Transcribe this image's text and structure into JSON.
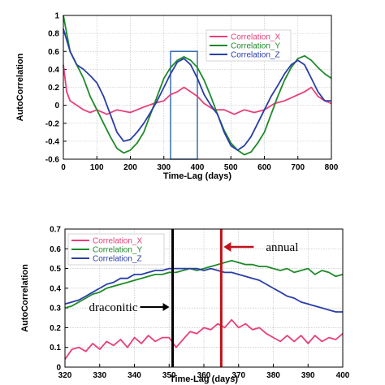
{
  "chart_data": [
    {
      "type": "line",
      "xlabel": "Time-Lag (days)",
      "ylabel": "AutoCorrelation",
      "xlim": [
        0,
        800
      ],
      "ylim": [
        -0.6,
        1
      ],
      "xticks": [
        "0",
        "100",
        "200",
        "300",
        "400",
        "500",
        "600",
        "700",
        "800"
      ],
      "yticks": [
        "-0.6",
        "-0.4",
        "-0.2",
        "0",
        "0.2",
        "0.4",
        "0.6",
        "0.8",
        "1"
      ],
      "grid": true,
      "legend_position": "top-right",
      "highlight_box": {
        "x": [
          320,
          400
        ],
        "y": [
          -0.6,
          0.6
        ],
        "color": "#3a6fb0"
      },
      "series": [
        {
          "name": "Correlation_X",
          "color": "#e8407a",
          "x": [
            0,
            10,
            20,
            40,
            60,
            80,
            100,
            130,
            160,
            200,
            240,
            270,
            300,
            320,
            340,
            360,
            380,
            400,
            420,
            450,
            480,
            510,
            540,
            570,
            600,
            630,
            660,
            690,
            720,
            740,
            760,
            780,
            800
          ],
          "y": [
            0.45,
            0.15,
            0.05,
            0.0,
            -0.05,
            -0.08,
            -0.05,
            -0.1,
            -0.05,
            -0.08,
            -0.02,
            0.02,
            0.05,
            0.12,
            0.15,
            0.2,
            0.15,
            0.1,
            0.02,
            -0.05,
            -0.05,
            -0.1,
            -0.05,
            -0.08,
            -0.05,
            0.02,
            0.05,
            0.1,
            0.15,
            0.2,
            0.1,
            0.05,
            0.02
          ]
        },
        {
          "name": "Correlation_Y",
          "color": "#1f8a2a",
          "x": [
            0,
            20,
            40,
            60,
            80,
            100,
            120,
            140,
            160,
            180,
            200,
            220,
            240,
            260,
            280,
            300,
            320,
            340,
            360,
            380,
            400,
            420,
            440,
            460,
            480,
            500,
            520,
            540,
            560,
            580,
            600,
            620,
            640,
            660,
            680,
            700,
            720,
            740,
            760,
            780,
            800
          ],
          "y": [
            1.0,
            0.6,
            0.45,
            0.3,
            0.1,
            -0.05,
            -0.2,
            -0.35,
            -0.48,
            -0.53,
            -0.5,
            -0.42,
            -0.3,
            -0.1,
            0.1,
            0.3,
            0.42,
            0.5,
            0.54,
            0.5,
            0.42,
            0.28,
            0.1,
            -0.1,
            -0.28,
            -0.42,
            -0.5,
            -0.55,
            -0.52,
            -0.42,
            -0.3,
            -0.1,
            0.1,
            0.28,
            0.42,
            0.52,
            0.55,
            0.5,
            0.42,
            0.35,
            0.3
          ]
        },
        {
          "name": "Correlation_Z",
          "color": "#2a3ea8",
          "x": [
            0,
            20,
            40,
            60,
            80,
            100,
            120,
            140,
            160,
            180,
            200,
            220,
            240,
            260,
            280,
            300,
            320,
            340,
            360,
            380,
            400,
            420,
            440,
            460,
            480,
            500,
            520,
            540,
            560,
            580,
            600,
            620,
            640,
            660,
            680,
            700,
            720,
            740,
            760,
            780,
            800
          ],
          "y": [
            0.85,
            0.6,
            0.45,
            0.4,
            0.33,
            0.25,
            0.1,
            -0.1,
            -0.3,
            -0.4,
            -0.38,
            -0.3,
            -0.2,
            -0.08,
            0.05,
            0.2,
            0.35,
            0.48,
            0.52,
            0.45,
            0.3,
            0.12,
            0.0,
            -0.1,
            -0.3,
            -0.45,
            -0.5,
            -0.45,
            -0.35,
            -0.2,
            -0.05,
            0.1,
            0.22,
            0.35,
            0.45,
            0.5,
            0.45,
            0.3,
            0.15,
            0.05,
            0.05
          ]
        }
      ]
    },
    {
      "type": "line",
      "xlabel": "Time-Lag (days)",
      "ylabel": "AutoCorrelation",
      "xlim": [
        320,
        400
      ],
      "ylim": [
        0,
        0.7
      ],
      "xticks": [
        "320",
        "330",
        "340",
        "350",
        "360",
        "370",
        "380",
        "390",
        "400"
      ],
      "yticks": [
        "0",
        "0.1",
        "0.2",
        "0.3",
        "0.4",
        "0.5",
        "0.6",
        "0.7"
      ],
      "grid": true,
      "legend_position": "top-left",
      "vlines": [
        {
          "x": 351,
          "color": "#000000",
          "label": "draconitic"
        },
        {
          "x": 365,
          "color": "#c0121a",
          "label": "annual"
        }
      ],
      "series": [
        {
          "name": "Correlation_X",
          "color": "#e8407a",
          "x": [
            320,
            322,
            324,
            326,
            328,
            330,
            332,
            334,
            336,
            338,
            340,
            342,
            344,
            346,
            348,
            350,
            352,
            354,
            356,
            358,
            360,
            362,
            364,
            366,
            368,
            370,
            372,
            374,
            376,
            378,
            380,
            382,
            384,
            386,
            388,
            390,
            392,
            394,
            396,
            398,
            400
          ],
          "y": [
            0.04,
            0.09,
            0.1,
            0.08,
            0.12,
            0.09,
            0.13,
            0.11,
            0.14,
            0.1,
            0.15,
            0.12,
            0.16,
            0.13,
            0.15,
            0.15,
            0.1,
            0.14,
            0.18,
            0.17,
            0.2,
            0.19,
            0.22,
            0.2,
            0.24,
            0.2,
            0.22,
            0.19,
            0.2,
            0.17,
            0.15,
            0.13,
            0.16,
            0.13,
            0.16,
            0.12,
            0.16,
            0.13,
            0.15,
            0.14,
            0.17
          ]
        },
        {
          "name": "Correlation_Y",
          "color": "#1f8a2a",
          "x": [
            320,
            322,
            324,
            326,
            328,
            330,
            332,
            334,
            336,
            338,
            340,
            342,
            344,
            346,
            348,
            350,
            352,
            354,
            356,
            358,
            360,
            362,
            364,
            366,
            368,
            370,
            372,
            374,
            376,
            378,
            380,
            382,
            384,
            386,
            388,
            390,
            392,
            394,
            396,
            398,
            400
          ],
          "y": [
            0.3,
            0.31,
            0.33,
            0.35,
            0.37,
            0.38,
            0.4,
            0.41,
            0.42,
            0.43,
            0.44,
            0.45,
            0.46,
            0.47,
            0.47,
            0.48,
            0.48,
            0.49,
            0.5,
            0.49,
            0.5,
            0.51,
            0.52,
            0.53,
            0.54,
            0.53,
            0.52,
            0.52,
            0.51,
            0.51,
            0.5,
            0.49,
            0.5,
            0.48,
            0.49,
            0.5,
            0.47,
            0.49,
            0.48,
            0.46,
            0.47
          ]
        },
        {
          "name": "Correlation_Z",
          "color": "#2a3ea8",
          "x": [
            320,
            322,
            324,
            326,
            328,
            330,
            332,
            334,
            336,
            338,
            340,
            342,
            344,
            346,
            348,
            350,
            352,
            354,
            356,
            358,
            360,
            362,
            364,
            366,
            368,
            370,
            372,
            374,
            376,
            378,
            380,
            382,
            384,
            386,
            388,
            390,
            392,
            394,
            396,
            398,
            400
          ],
          "y": [
            0.32,
            0.33,
            0.34,
            0.36,
            0.38,
            0.4,
            0.42,
            0.43,
            0.45,
            0.45,
            0.47,
            0.47,
            0.48,
            0.49,
            0.49,
            0.5,
            0.5,
            0.5,
            0.5,
            0.5,
            0.49,
            0.5,
            0.49,
            0.48,
            0.48,
            0.47,
            0.46,
            0.45,
            0.44,
            0.42,
            0.4,
            0.38,
            0.36,
            0.35,
            0.33,
            0.32,
            0.31,
            0.3,
            0.29,
            0.28,
            0.28
          ]
        }
      ]
    }
  ]
}
